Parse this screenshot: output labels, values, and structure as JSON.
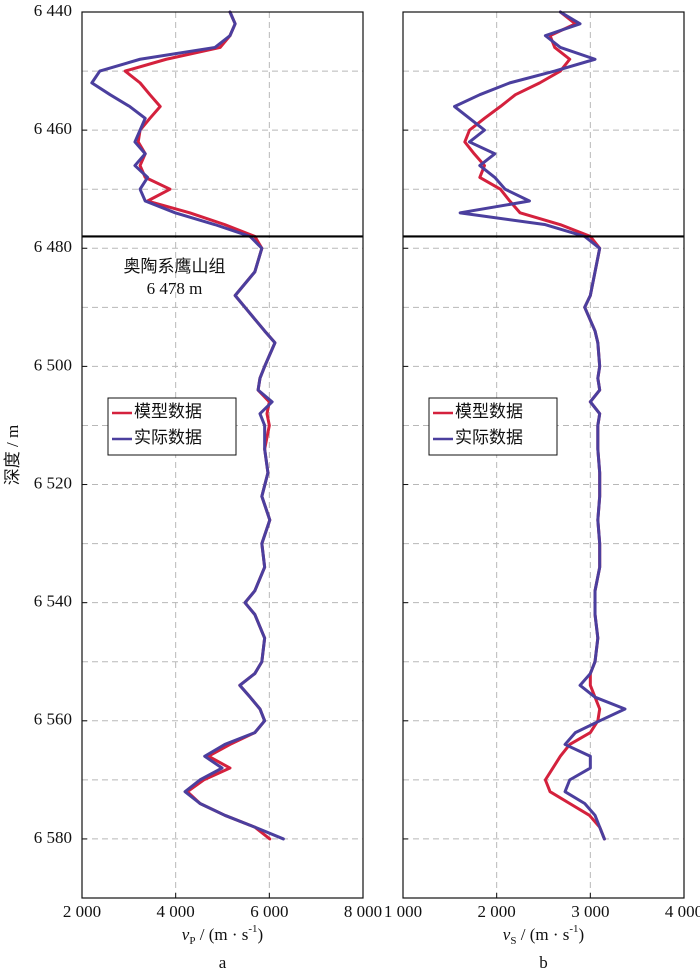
{
  "chart_data": [
    {
      "type": "line",
      "panel_label": "a",
      "ylabel": "深度 / m",
      "xlabel": {
        "symbol": "v",
        "subscript": "P",
        "unit": " / (m · s",
        "superscript": "-1",
        "close": ")"
      },
      "xlim": [
        2000,
        8000
      ],
      "xticks": [
        {
          "value": 2000,
          "label": "2 000"
        },
        {
          "value": 4000,
          "label": "4 000"
        },
        {
          "value": 6000,
          "label": "6 000"
        },
        {
          "value": 8000,
          "label": "8 000"
        }
      ],
      "ylim": [
        6440,
        6590
      ],
      "y_inverted": true,
      "show_y_tick_labels": true,
      "yticks": [
        {
          "value": 6440,
          "label": "6 440"
        },
        {
          "value": 6460,
          "label": "6 460"
        },
        {
          "value": 6480,
          "label": "6 480"
        },
        {
          "value": 6500,
          "label": "6 500"
        },
        {
          "value": 6520,
          "label": "6 520"
        },
        {
          "value": 6540,
          "label": "6 540"
        },
        {
          "value": 6560,
          "label": "6 560"
        },
        {
          "value": 6580,
          "label": "6 580"
        }
      ],
      "yminorticks": [
        6450,
        6470,
        6490,
        6510,
        6530,
        6550,
        6570
      ],
      "grid": true,
      "legend_position": "center-left",
      "boundary_depth": 6478,
      "annotation": [
        "奥陶系鹰山组",
        "6 478 m"
      ],
      "y": [
        6440,
        6442,
        6444,
        6446,
        6448,
        6450,
        6452,
        6454,
        6456,
        6458,
        6460,
        6462,
        6464,
        6466,
        6468,
        6470,
        6472,
        6474,
        6476,
        6478,
        6480,
        6484,
        6488,
        6490,
        6494,
        6496,
        6500,
        6502,
        6504,
        6506,
        6508,
        6510,
        6514,
        6518,
        6522,
        6526,
        6530,
        6534,
        6538,
        6540,
        6542,
        6546,
        6550,
        6552,
        6554,
        6556,
        6558,
        6560,
        6562,
        6564,
        6566,
        6568,
        6570,
        6572,
        6574,
        6576,
        6578,
        6580
      ],
      "series": [
        {
          "name": "模型数据",
          "color": "#d4213d",
          "values": [
            5160,
            5270,
            5160,
            4950,
            3800,
            2920,
            3240,
            3450,
            3670,
            3450,
            3240,
            3200,
            3350,
            3240,
            3350,
            3880,
            3400,
            4300,
            5050,
            5690,
            5840,
            5690,
            5270,
            5480,
            5900,
            6120,
            5900,
            5800,
            5760,
            6000,
            5950,
            6000,
            5900,
            5970,
            5840,
            6010,
            5840,
            5900,
            5690,
            5480,
            5690,
            5900,
            5840,
            5690,
            5370,
            5590,
            5800,
            5900,
            5690,
            5160,
            4700,
            5160,
            4600,
            4250,
            4520,
            5050,
            5690,
            6010
          ]
        },
        {
          "name": "实际数据",
          "color": "#4b3f9e",
          "values": [
            5160,
            5270,
            5160,
            4840,
            3240,
            2380,
            2210,
            2600,
            3020,
            3350,
            3240,
            3130,
            3350,
            3130,
            3400,
            3240,
            3350,
            3990,
            4840,
            5590,
            5840,
            5690,
            5270,
            5480,
            5900,
            6120,
            5900,
            5800,
            5760,
            6060,
            5800,
            5900,
            5900,
            5970,
            5840,
            6010,
            5840,
            5900,
            5690,
            5480,
            5690,
            5900,
            5840,
            5690,
            5370,
            5590,
            5800,
            5900,
            5690,
            5050,
            4620,
            4990,
            4520,
            4200,
            4520,
            5050,
            5690,
            6300
          ]
        }
      ]
    },
    {
      "type": "line",
      "panel_label": "b",
      "xlabel": {
        "symbol": "v",
        "subscript": "S",
        "unit": " / (m · s",
        "superscript": "-1",
        "close": ")"
      },
      "xlim": [
        1000,
        4000
      ],
      "xticks": [
        {
          "value": 1000,
          "label": "1 000"
        },
        {
          "value": 2000,
          "label": "2 000"
        },
        {
          "value": 3000,
          "label": "3 000"
        },
        {
          "value": 4000,
          "label": "4 000"
        }
      ],
      "ylim": [
        6440,
        6590
      ],
      "y_inverted": true,
      "show_y_tick_labels": false,
      "yticks": [
        6440,
        6460,
        6480,
        6500,
        6520,
        6540,
        6560,
        6580
      ],
      "yminorticks": [
        6450,
        6470,
        6490,
        6510,
        6530,
        6550,
        6570
      ],
      "grid": true,
      "legend_position": "center-left",
      "boundary_depth": 6478,
      "y": [
        6440,
        6442,
        6444,
        6446,
        6448,
        6450,
        6452,
        6454,
        6456,
        6458,
        6460,
        6462,
        6464,
        6466,
        6468,
        6470,
        6472,
        6474,
        6476,
        6478,
        6480,
        6484,
        6488,
        6490,
        6494,
        6496,
        6500,
        6502,
        6504,
        6506,
        6508,
        6510,
        6514,
        6518,
        6522,
        6526,
        6530,
        6534,
        6538,
        6540,
        6542,
        6546,
        6550,
        6552,
        6554,
        6556,
        6558,
        6560,
        6562,
        6564,
        6566,
        6568,
        6570,
        6572,
        6574,
        6576,
        6578,
        6580
      ],
      "series": [
        {
          "name": "模型数据",
          "color": "#d4213d",
          "values": [
            2680,
            2840,
            2570,
            2620,
            2780,
            2680,
            2460,
            2200,
            2040,
            1870,
            1710,
            1660,
            1760,
            1870,
            1820,
            2040,
            2140,
            2250,
            2680,
            3000,
            3100,
            3050,
            3000,
            2940,
            3050,
            3080,
            3100,
            3080,
            3100,
            3000,
            3100,
            3080,
            3080,
            3100,
            3100,
            3080,
            3100,
            3100,
            3050,
            3050,
            3050,
            3080,
            3050,
            3000,
            3000,
            3050,
            3100,
            3080,
            3000,
            2780,
            2680,
            2600,
            2520,
            2570,
            2780,
            2990,
            3100,
            3150
          ]
        },
        {
          "name": "实际数据",
          "color": "#4b3f9e",
          "values": [
            2680,
            2890,
            2520,
            2680,
            3050,
            2620,
            2140,
            1820,
            1550,
            1710,
            1870,
            1710,
            1980,
            1820,
            1980,
            2090,
            2350,
            1610,
            2520,
            2940,
            3100,
            3050,
            3000,
            2940,
            3050,
            3080,
            3100,
            3080,
            3100,
            3000,
            3100,
            3080,
            3080,
            3100,
            3100,
            3080,
            3100,
            3100,
            3050,
            3050,
            3050,
            3080,
            3050,
            3000,
            2890,
            3050,
            3370,
            3100,
            2840,
            2730,
            3000,
            3000,
            2780,
            2730,
            2940,
            3050,
            3100,
            3150
          ]
        }
      ]
    }
  ]
}
